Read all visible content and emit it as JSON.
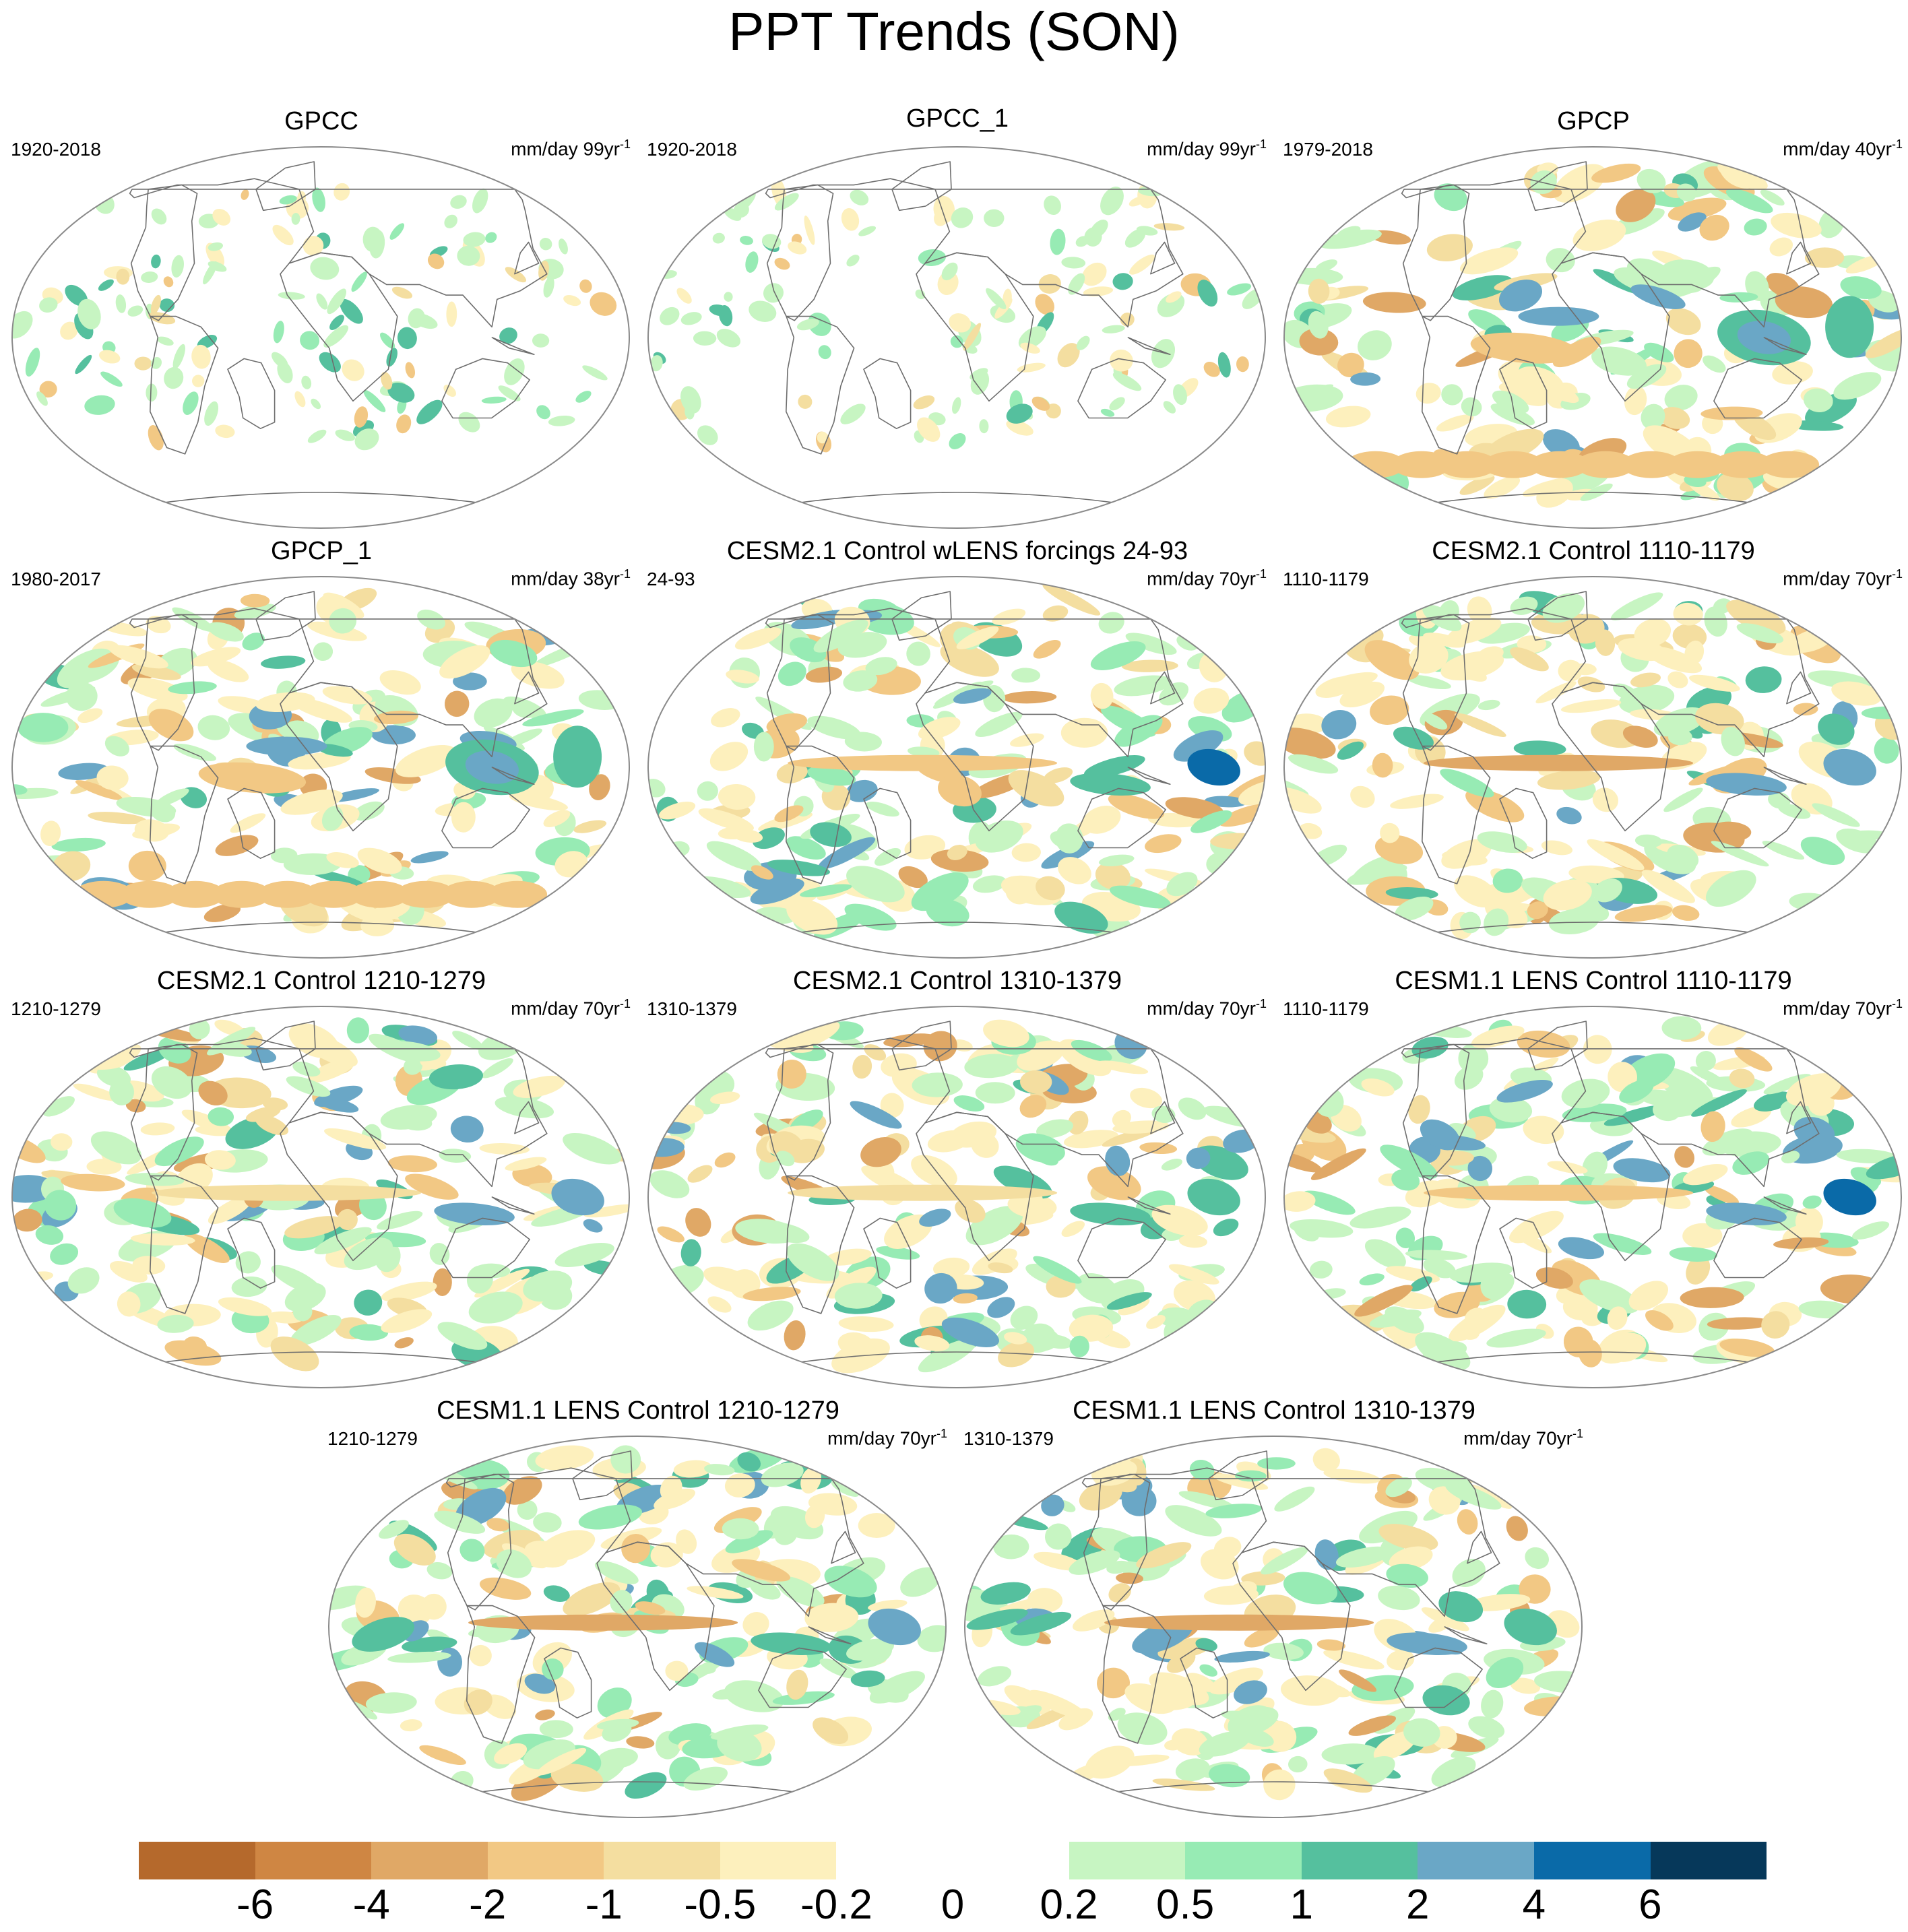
{
  "title": "PPT Trends (SON)",
  "panels": [
    {
      "title": "GPCC",
      "period": "1920-2018",
      "units": "mm/day 99yr",
      "exp": "-1",
      "variant": "obs-land"
    },
    {
      "title": "GPCC_1",
      "period": "1920-2018",
      "units": "mm/day 99yr",
      "exp": "-1",
      "variant": "obs-land"
    },
    {
      "title": "GPCP",
      "period": "1979-2018",
      "units": "mm/day 40yr",
      "exp": "-1",
      "variant": "obs-global"
    },
    {
      "title": "GPCP_1",
      "period": "1980-2017",
      "units": "mm/day 38yr",
      "exp": "-1",
      "variant": "obs-global"
    },
    {
      "title": "CESM2.1 Control wLENS forcings 24-93",
      "period": "24-93",
      "units": "mm/day 70yr",
      "exp": "-1",
      "variant": "model-a"
    },
    {
      "title": "CESM2.1 Control 1110-1179",
      "period": "1110-1179",
      "units": "mm/day 70yr",
      "exp": "-1",
      "variant": "model-b"
    },
    {
      "title": "CESM2.1 Control 1210-1279",
      "period": "1210-1279",
      "units": "mm/day 70yr",
      "exp": "-1",
      "variant": "model-c"
    },
    {
      "title": "CESM2.1 Control 1310-1379",
      "period": "1310-1379",
      "units": "mm/day 70yr",
      "exp": "-1",
      "variant": "model-d"
    },
    {
      "title": "CESM1.1 LENS Control 1110-1179",
      "period": "1110-1179",
      "units": "mm/day 70yr",
      "exp": "-1",
      "variant": "model-e"
    },
    {
      "title": "CESM1.1 LENS Control 1210-1279",
      "period": "1210-1279",
      "units": "mm/day 70yr",
      "exp": "-1",
      "variant": "model-f"
    },
    {
      "title": "CESM1.1 LENS Control 1310-1379",
      "period": "1310-1379",
      "units": "mm/day 70yr",
      "exp": "-1",
      "variant": "model-g"
    }
  ],
  "colorbar": {
    "colors": [
      "#b5692c",
      "#cf8643",
      "#e0a866",
      "#f2c884",
      "#f4dea0",
      "#fdf0bd",
      "#ffffff",
      "#ffffff",
      "#c7f5c2",
      "#97ebb4",
      "#55c09e",
      "#6aa7c6",
      "#0a6aa8",
      "#06385a"
    ],
    "labels": [
      "-6",
      "-4",
      "-2",
      "-1",
      "-0.5",
      "-0.2",
      "0",
      "0.2",
      "0.5",
      "1",
      "2",
      "4",
      "6"
    ]
  }
}
